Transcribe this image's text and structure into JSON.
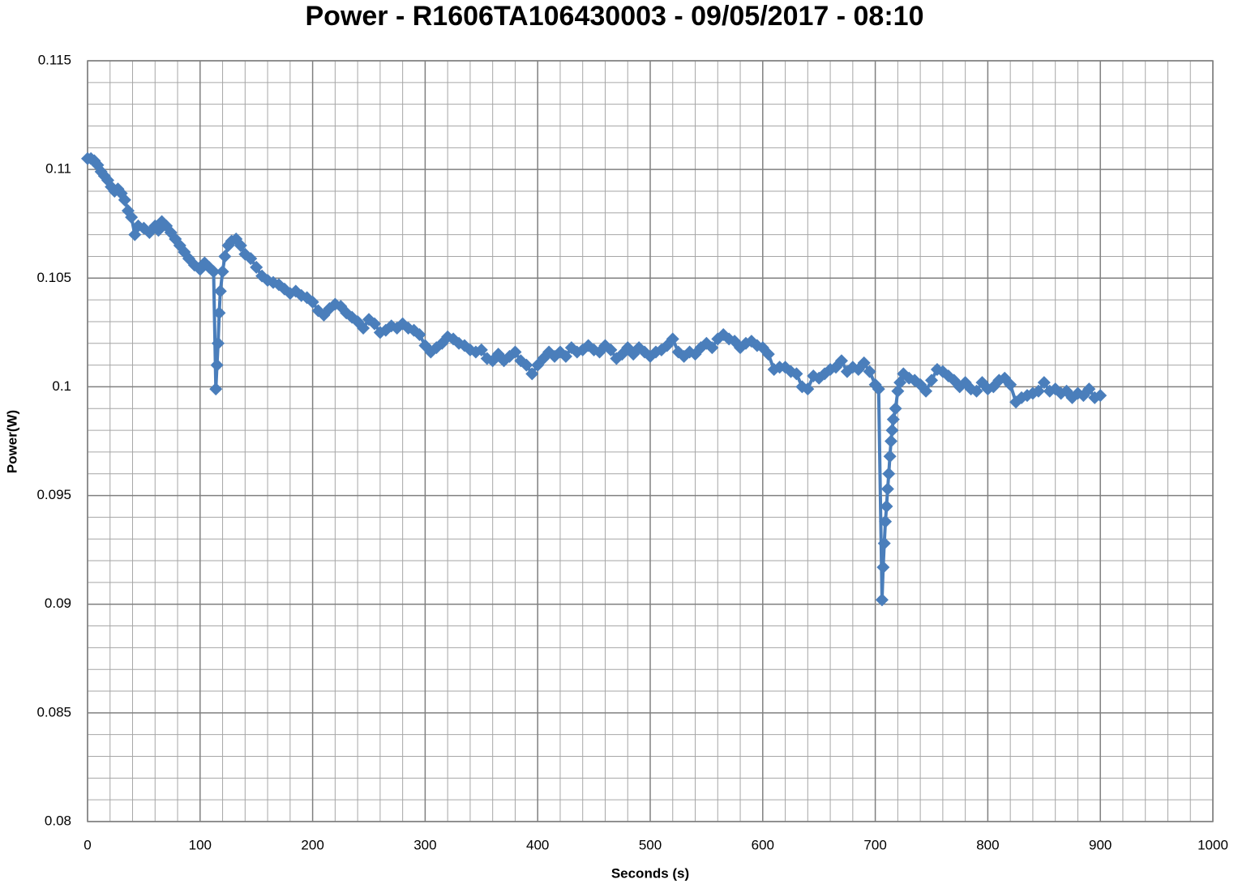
{
  "chart_data": {
    "type": "line",
    "title": "Power - R1606TA106430003 - 09/05/2017 - 08:10",
    "x_label": "Seconds (s)",
    "y_label": "Power(W)",
    "color": "#4a7ebb",
    "marker": "diamond",
    "grid": true,
    "xlim": [
      0,
      1000
    ],
    "xticks": [
      0,
      100,
      200,
      300,
      400,
      500,
      600,
      700,
      800,
      900,
      1000
    ],
    "ylim": [
      0.08,
      0.115
    ],
    "yticks": [
      0.08,
      0.085,
      0.09,
      0.095,
      0.1,
      0.105,
      0.11,
      0.115
    ],
    "x": [
      0,
      3,
      6,
      9,
      12,
      15,
      18,
      21,
      24,
      27,
      30,
      33,
      36,
      39,
      42,
      45,
      50,
      55,
      60,
      63,
      66,
      70,
      74,
      78,
      82,
      86,
      90,
      95,
      100,
      104,
      108,
      112,
      114,
      115,
      116,
      117,
      118,
      120,
      122,
      125,
      128,
      132,
      136,
      140,
      145,
      150,
      155,
      160,
      165,
      170,
      175,
      180,
      185,
      190,
      195,
      200,
      205,
      210,
      215,
      220,
      225,
      230,
      235,
      240,
      245,
      250,
      255,
      260,
      265,
      270,
      275,
      280,
      285,
      290,
      295,
      300,
      305,
      310,
      315,
      320,
      325,
      330,
      335,
      340,
      345,
      350,
      355,
      360,
      365,
      370,
      375,
      380,
      385,
      390,
      395,
      400,
      405,
      410,
      415,
      420,
      425,
      430,
      435,
      440,
      445,
      450,
      455,
      460,
      465,
      470,
      475,
      480,
      485,
      490,
      495,
      500,
      505,
      510,
      515,
      520,
      525,
      530,
      535,
      540,
      545,
      550,
      555,
      560,
      565,
      570,
      575,
      580,
      585,
      590,
      595,
      600,
      605,
      610,
      615,
      620,
      625,
      630,
      635,
      640,
      645,
      650,
      655,
      660,
      665,
      670,
      675,
      680,
      685,
      690,
      695,
      700,
      703,
      706,
      707,
      708,
      709,
      710,
      711,
      712,
      713,
      714,
      715,
      716,
      718,
      720,
      722,
      725,
      730,
      735,
      740,
      745,
      750,
      755,
      760,
      765,
      770,
      775,
      780,
      785,
      790,
      795,
      800,
      805,
      810,
      815,
      820,
      825,
      830,
      835,
      840,
      845,
      850,
      855,
      860,
      865,
      870,
      875,
      880,
      885,
      890,
      895,
      900
    ],
    "values": [
      0.1105,
      0.1105,
      0.1104,
      0.1102,
      0.1099,
      0.1097,
      0.1095,
      0.1092,
      0.109,
      0.1091,
      0.1089,
      0.1086,
      0.1081,
      0.1078,
      0.107,
      0.1074,
      0.1073,
      0.1071,
      0.1074,
      0.1072,
      0.1076,
      0.1074,
      0.1071,
      0.1068,
      0.1065,
      0.1062,
      0.1059,
      0.1056,
      0.1054,
      0.1057,
      0.1055,
      0.1053,
      0.0999,
      0.101,
      0.102,
      0.1034,
      0.1044,
      0.1053,
      0.106,
      0.1065,
      0.1067,
      0.1068,
      0.1065,
      0.1061,
      0.1059,
      0.1055,
      0.1051,
      0.1049,
      0.1048,
      0.1047,
      0.1045,
      0.1043,
      0.1044,
      0.1042,
      0.1041,
      0.1039,
      0.1035,
      0.1033,
      0.1036,
      0.1038,
      0.1037,
      0.1034,
      0.1032,
      0.103,
      0.1027,
      0.1031,
      0.1029,
      0.1025,
      0.1026,
      0.1028,
      0.1027,
      0.1029,
      0.1027,
      0.1026,
      0.1024,
      0.1019,
      0.1016,
      0.1018,
      0.102,
      0.1023,
      0.1022,
      0.102,
      0.1019,
      0.1017,
      0.1016,
      0.1017,
      0.1013,
      0.1012,
      0.1015,
      0.1012,
      0.1014,
      0.1016,
      0.1012,
      0.101,
      0.1006,
      0.101,
      0.1013,
      0.1016,
      0.1014,
      0.1016,
      0.1014,
      0.1018,
      0.1016,
      0.1017,
      0.1019,
      0.1017,
      0.1016,
      0.1019,
      0.1017,
      0.1013,
      0.1015,
      0.1018,
      0.1015,
      0.1018,
      0.1016,
      0.1014,
      0.1016,
      0.1017,
      0.1019,
      0.1022,
      0.1016,
      0.1014,
      0.1016,
      0.1015,
      0.1018,
      0.102,
      0.1018,
      0.1022,
      0.1024,
      0.1022,
      0.1021,
      0.1018,
      0.102,
      0.1021,
      0.1019,
      0.1018,
      0.1015,
      0.1008,
      0.1009,
      0.1009,
      0.1007,
      0.1006,
      0.1,
      0.0999,
      0.1005,
      0.1004,
      0.1006,
      0.1008,
      0.1009,
      0.1012,
      0.1007,
      0.1009,
      0.1008,
      0.1011,
      0.1007,
      0.1001,
      0.0999,
      0.0902,
      0.0917,
      0.0928,
      0.0938,
      0.0945,
      0.0953,
      0.096,
      0.0968,
      0.0975,
      0.098,
      0.0985,
      0.099,
      0.0998,
      0.1002,
      0.1006,
      0.1004,
      0.1003,
      0.1001,
      0.0998,
      0.1003,
      0.1008,
      0.1007,
      0.1005,
      0.1003,
      0.1,
      0.1002,
      0.0999,
      0.0998,
      0.1002,
      0.0999,
      0.1,
      0.1003,
      0.1004,
      0.1001,
      0.0993,
      0.0995,
      0.0996,
      0.0997,
      0.0998,
      0.1002,
      0.0998,
      0.0999,
      0.0997,
      0.0998,
      0.0995,
      0.0997,
      0.0996,
      0.0999,
      0.0995,
      0.0996
    ]
  }
}
